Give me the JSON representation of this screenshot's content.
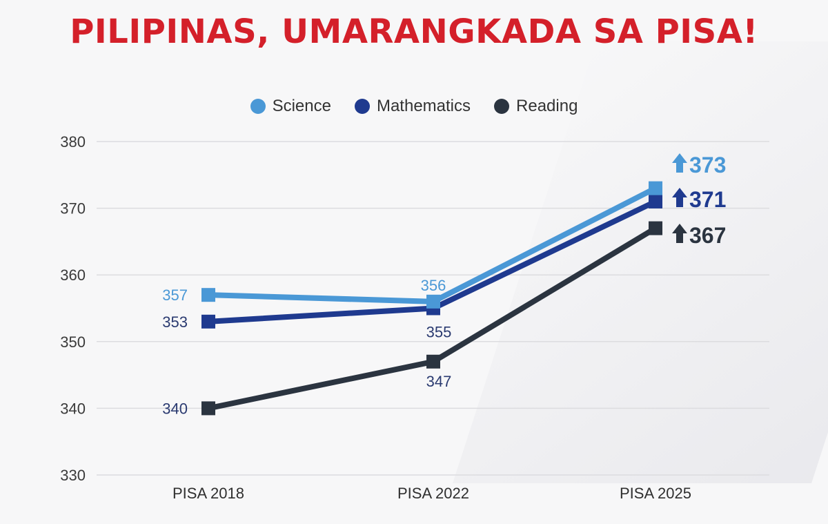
{
  "chart_data": {
    "type": "line",
    "title": "PILIPINAS, UMARANGKADA SA PISA!",
    "categories": [
      "PISA 2018",
      "PISA 2022",
      "PISA 2025"
    ],
    "ylim": [
      330,
      380
    ],
    "yticks": [
      330,
      340,
      350,
      360,
      370,
      380
    ],
    "grid": true,
    "legend_position": "top-center",
    "series": [
      {
        "name": "Science",
        "color": "#4a98d6",
        "values": [
          357,
          356,
          373
        ]
      },
      {
        "name": "Mathematics",
        "color": "#1f3a8f",
        "values": [
          353,
          355,
          371
        ]
      },
      {
        "name": "Reading",
        "color": "#2b3440",
        "values": [
          340,
          347,
          367
        ]
      }
    ]
  }
}
